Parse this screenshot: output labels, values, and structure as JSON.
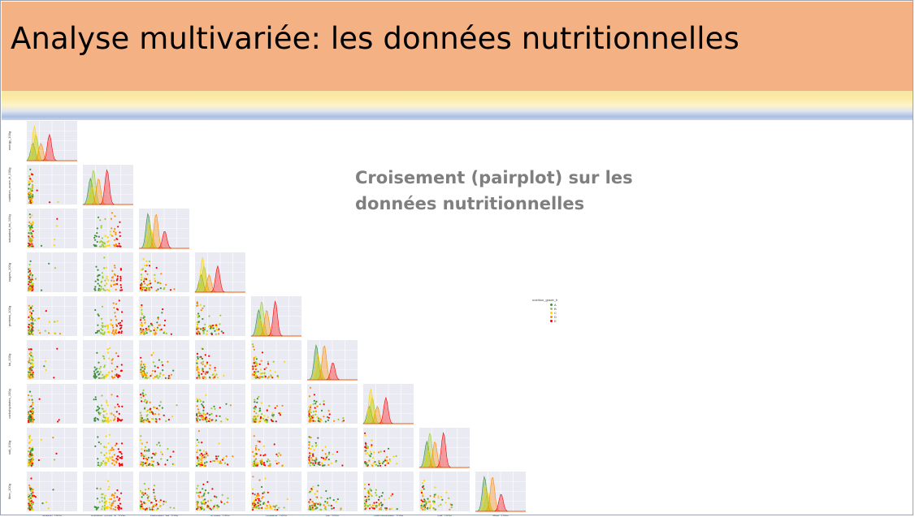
{
  "slide": {
    "title": "Analyse multivariée: les données nutritionnelles",
    "subtitle": "Croisement (pairplot) sur les données nutritionnelles"
  },
  "colors": {
    "title_bar": "#f4b183",
    "subtitle": "#7f7f7f",
    "grade_A": "#3a923a",
    "grade_B": "#9acd32",
    "grade_C": "#ffd700",
    "grade_D": "#ff8c00",
    "grade_E": "#ff0000"
  },
  "chart_data": {
    "type": "scatter",
    "title": "",
    "hue": "nutrition_grade_fr",
    "legend": {
      "title": "nutrition_grade_fr",
      "entries": [
        "A",
        "B",
        "C",
        "D",
        "E"
      ],
      "placement": "right"
    },
    "variables": [
      "energy_100g",
      "nutrition_score_fr_100g",
      "saturated_fat_100g",
      "sugars_100g",
      "proteins_100g",
      "fat_100g",
      "carbohydrates_100g",
      "salt_100g",
      "fiber_100g"
    ],
    "diagonal": "kde",
    "lower_triangle": "scatter",
    "grid": true
  }
}
